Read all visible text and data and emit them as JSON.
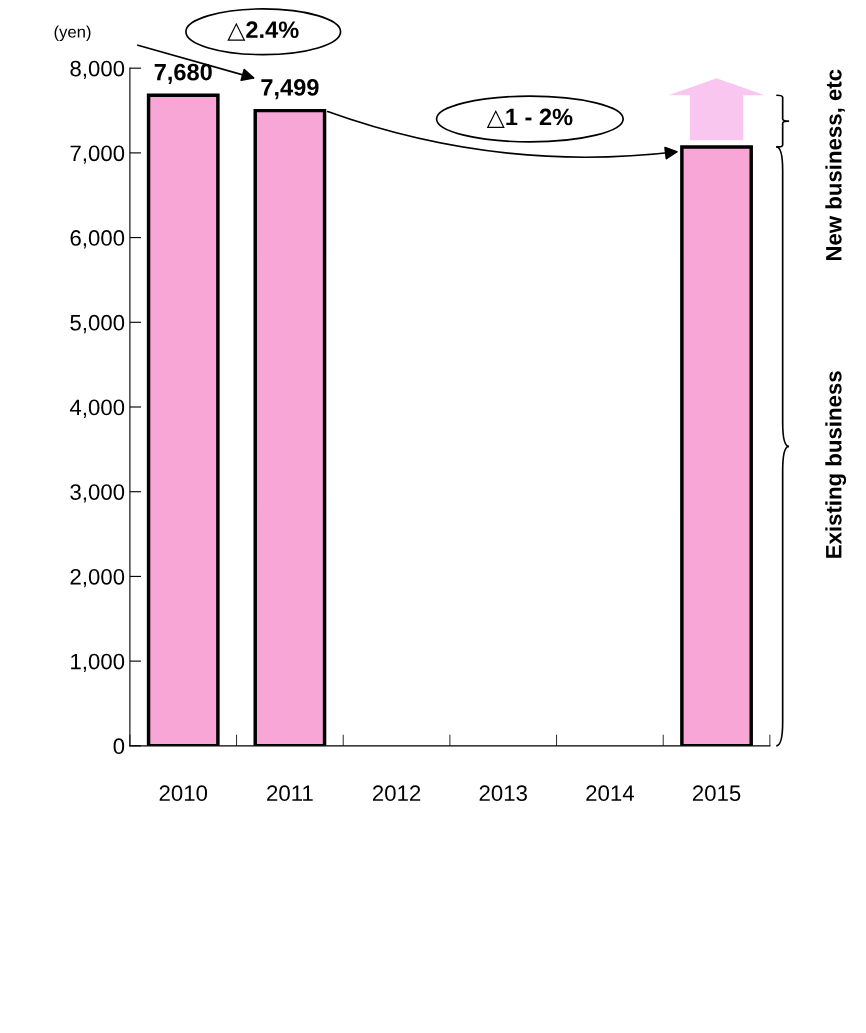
{
  "chart_data": {
    "type": "bar",
    "categories": [
      "2010",
      "2011",
      "2012",
      "2013",
      "2014",
      "2015"
    ],
    "values": [
      7680,
      7499,
      null,
      null,
      null,
      7070
    ],
    "color": "#f7a6d6",
    "value_labels": [
      "7,680",
      "7,499",
      null,
      null,
      null,
      null
    ],
    "ylabel": "(yen)",
    "ylim": [
      0,
      8000
    ],
    "yticks": [
      0,
      {
        "value": 1000,
        "label": "1,000"
      },
      {
        "value": 2000,
        "label": "2,000"
      },
      {
        "value": 3000,
        "label": "3,000"
      },
      {
        "value": 4000,
        "label": "4,000"
      },
      {
        "value": 5000,
        "label": "5,000"
      },
      {
        "value": 6000,
        "label": "6,000"
      },
      {
        "value": 7000,
        "label": "7,000"
      },
      {
        "value": 8000,
        "label": "8,000"
      }
    ],
    "annotations": [
      "△2.4%",
      "△1 - 2%",
      "New business, etc",
      "Existing business"
    ],
    "grid": false,
    "legend": false
  }
}
